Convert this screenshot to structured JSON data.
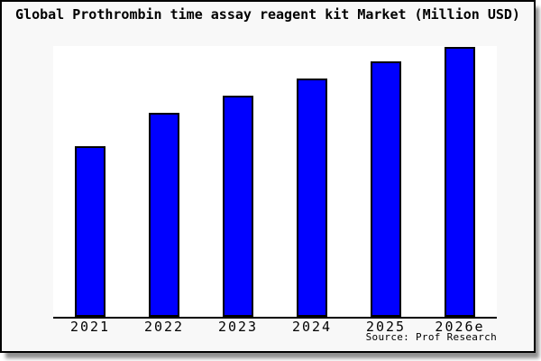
{
  "title": "Global Prothrombin time assay reagent kit Market (Million USD)",
  "source_credit": "Source: Prof Research",
  "chart_data": {
    "type": "bar",
    "title": "Global Prothrombin time assay reagent kit Market (Million USD)",
    "categories": [
      "2021",
      "2022",
      "2023",
      "2024",
      "2025",
      "2026e"
    ],
    "values": [
      63.2,
      75.6,
      81.9,
      88.3,
      94.6,
      100.0
    ],
    "value_note": "y-axis has no ticks or labels; values estimated as percent of tallest (2026e) bar height",
    "xlabel": "",
    "ylabel": "",
    "ylim": [
      0,
      100
    ],
    "grid": false,
    "legend": false,
    "annotations": [
      "Source: Prof Research"
    ],
    "colors": {
      "bar_fill": "#0000ff",
      "bar_border": "#000000",
      "figure_background": "#f8f8f8",
      "plot_background": "#ffffff",
      "axis_line": "#000000",
      "frame_border": "#000000",
      "frame_shadow": "#8f8f8f",
      "text": "#000000"
    }
  }
}
